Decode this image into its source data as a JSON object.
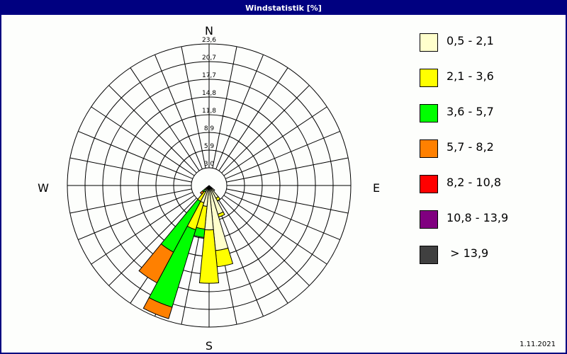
{
  "title": "Windstatistik [%]",
  "date": "1.11.2021",
  "chart_data": {
    "type": "wind-rose",
    "title": "Windstatistik [%]",
    "sectors": 32,
    "radial_ticks": [
      "3,0",
      "5,9",
      "8,9",
      "11,8",
      "14,8",
      "17,7",
      "20,7",
      "23,6"
    ],
    "radial_max": 23.6,
    "compass": {
      "N": "N",
      "E": "E",
      "S": "S",
      "W": "W"
    },
    "legend_placement": "right",
    "classes": [
      {
        "label": "0,5 - 2,1",
        "color": "#ffffcc"
      },
      {
        "label": "2,1 - 3,6",
        "color": "#ffff00"
      },
      {
        "label": "3,6 - 5,7",
        "color": "#00ff00"
      },
      {
        "label": "5,7 - 8,2",
        "color": "#ff8000"
      },
      {
        "label": "8,2 - 10,8",
        "color": "#ff0000"
      },
      {
        "label": "10,8 - 13,9",
        "color": "#800080"
      },
      {
        "label": " > 13,9",
        "color": "#404040"
      }
    ],
    "directions": [
      {
        "deg": 135,
        "values": [
          1.2,
          0,
          0,
          0,
          0,
          0,
          0
        ]
      },
      {
        "deg": 146.25,
        "values": [
          2.4,
          0.5,
          0,
          0,
          0,
          0,
          0
        ]
      },
      {
        "deg": 157.5,
        "values": [
          5.0,
          0.5,
          0,
          0,
          0,
          0,
          0
        ]
      },
      {
        "deg": 168.75,
        "values": [
          10.9,
          2.7,
          0,
          0,
          0,
          0,
          0
        ]
      },
      {
        "deg": 180,
        "values": [
          7.4,
          8.9,
          0,
          0,
          0,
          0,
          0
        ]
      },
      {
        "deg": 191.25,
        "values": [
          3.5,
          3.8,
          1.4,
          0,
          0,
          0,
          0
        ]
      },
      {
        "deg": 202.5,
        "values": [
          3.0,
          4.7,
          13.5,
          2.0,
          0,
          0,
          0
        ]
      },
      {
        "deg": 213.75,
        "values": [
          1.2,
          1.8,
          9.6,
          5.8,
          0,
          0,
          0
        ]
      },
      {
        "deg": 225,
        "values": [
          0.6,
          0.3,
          0.5,
          0.5,
          0,
          0,
          0
        ]
      }
    ]
  }
}
